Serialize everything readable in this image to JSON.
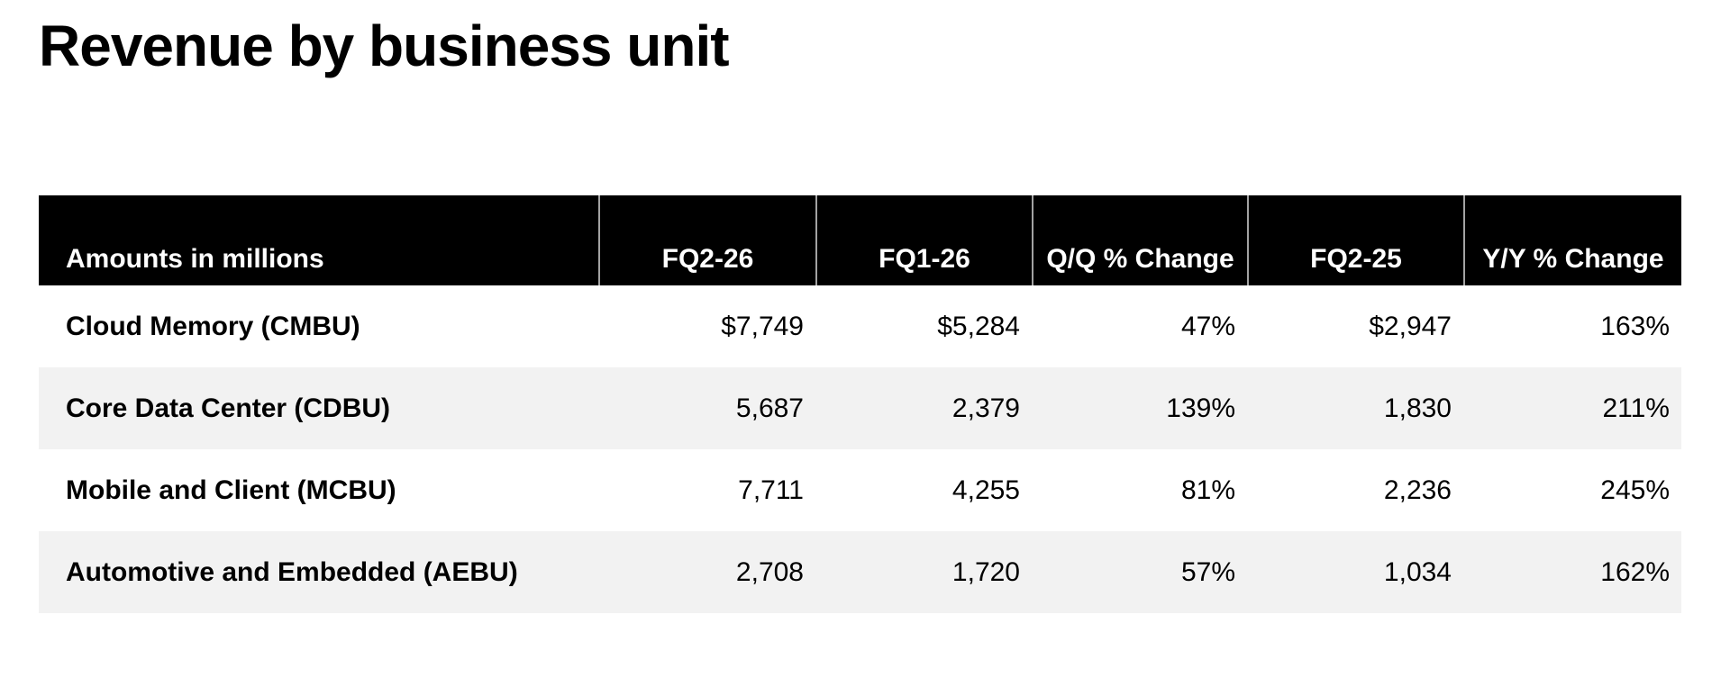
{
  "page": {
    "title": "Revenue by business unit"
  },
  "colors": {
    "header_bg": "#000000",
    "header_text": "#ffffff",
    "row_alt_bg": "#f2f2f2",
    "header_divider": "#a3a3a3",
    "body_text": "#000000",
    "background": "#ffffff"
  },
  "table": {
    "columns": [
      {
        "label": "Amounts in millions"
      },
      {
        "label": "FQ2-26"
      },
      {
        "label": "FQ1-26"
      },
      {
        "label": "Q/Q % Change"
      },
      {
        "label": "FQ2-25"
      },
      {
        "label": "Y/Y % Change"
      }
    ],
    "rows": [
      {
        "label": "Cloud Memory (CMBU)",
        "values": [
          "$7,749",
          "$5,284",
          "47%",
          "$2,947",
          "163%"
        ]
      },
      {
        "label": "Core Data Center (CDBU)",
        "values": [
          "5,687",
          "2,379",
          "139%",
          "1,830",
          "211%"
        ]
      },
      {
        "label": "Mobile and Client (MCBU)",
        "values": [
          "7,711",
          "4,255",
          "81%",
          "2,236",
          "245%"
        ]
      },
      {
        "label": "Automotive and Embedded (AEBU)",
        "values": [
          "2,708",
          "1,720",
          "57%",
          "1,034",
          "162%"
        ]
      }
    ]
  }
}
